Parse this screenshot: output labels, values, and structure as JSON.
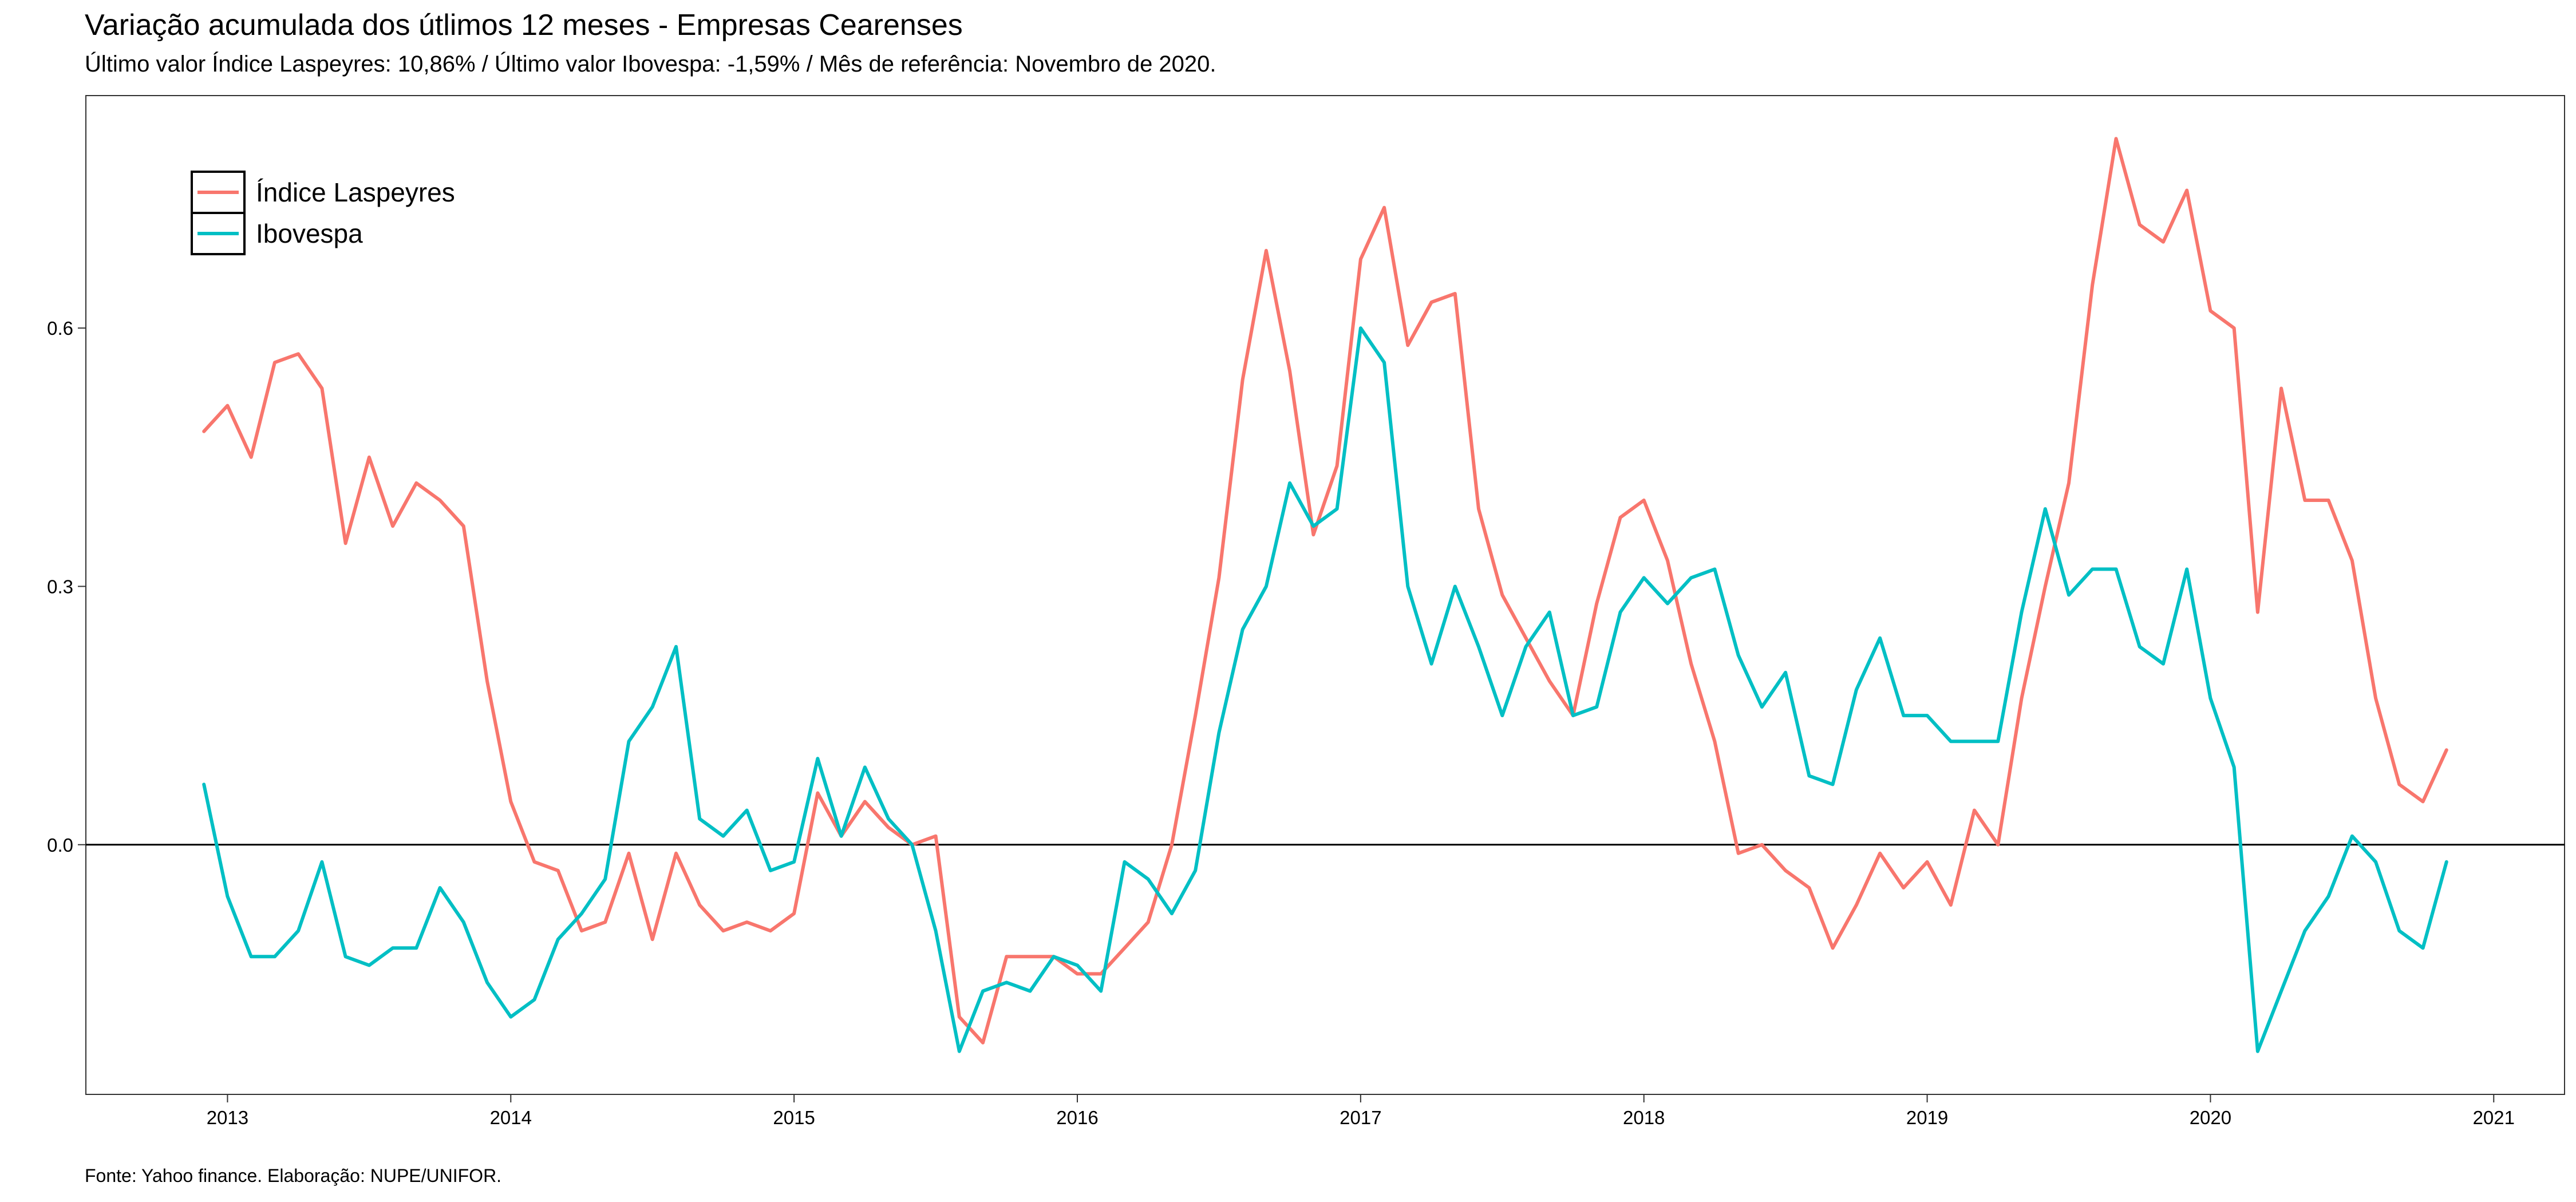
{
  "chart_data": {
    "type": "line",
    "title": "Variação acumulada dos útlimos 12 meses - Empresas Cearenses",
    "subtitle": "Último valor Índice Laspeyres: 10,86% / Último valor Ibovespa: -1,59% / Mês de referência: Novembro de 2020.",
    "caption": "Fonte: Yahoo finance. Elaboração: NUPE/UNIFOR.",
    "xlabel": "",
    "ylabel": "",
    "x_start": "2012-12",
    "x_end": "2020-11",
    "xlim": [
      "2012-07",
      "2021-04"
    ],
    "ylim": [
      -0.29,
      0.87
    ],
    "x_ticks": [
      "2013",
      "2014",
      "2015",
      "2016",
      "2017",
      "2018",
      "2019",
      "2020",
      "2021"
    ],
    "y_ticks": [
      "0.0",
      "0.3",
      "0.6"
    ],
    "y_tick_values": [
      0.0,
      0.3,
      0.6
    ],
    "reference_line_y": 0.0,
    "grid": false,
    "legend_position": "top-left",
    "series": [
      {
        "name": "Índice Laspeyres",
        "color": "#F8766D",
        "values": [
          0.48,
          0.51,
          0.45,
          0.56,
          0.57,
          0.53,
          0.35,
          0.45,
          0.37,
          0.42,
          0.4,
          0.37,
          0.19,
          0.05,
          -0.02,
          -0.03,
          -0.1,
          -0.09,
          -0.01,
          -0.11,
          -0.01,
          -0.07,
          -0.1,
          -0.09,
          -0.1,
          -0.08,
          0.06,
          0.01,
          0.05,
          0.02,
          0.0,
          0.01,
          -0.2,
          -0.23,
          -0.13,
          -0.13,
          -0.13,
          -0.15,
          -0.15,
          -0.12,
          -0.09,
          0.0,
          0.15,
          0.31,
          0.54,
          0.69,
          0.55,
          0.36,
          0.44,
          0.68,
          0.74,
          0.58,
          0.63,
          0.64,
          0.39,
          0.29,
          0.24,
          0.19,
          0.15,
          0.28,
          0.38,
          0.4,
          0.33,
          0.21,
          0.12,
          -0.01,
          0.0,
          -0.03,
          -0.05,
          -0.12,
          -0.07,
          -0.01,
          -0.05,
          -0.02,
          -0.07,
          0.04,
          0.0,
          0.17,
          0.3,
          0.42,
          0.65,
          0.82,
          0.72,
          0.7,
          0.76,
          0.62,
          0.6,
          0.27,
          0.53,
          0.4,
          0.4,
          0.33,
          0.17,
          0.07,
          0.05,
          0.11
        ]
      },
      {
        "name": "Ibovespa",
        "color": "#00BFC4",
        "values": [
          0.07,
          -0.06,
          -0.13,
          -0.13,
          -0.1,
          -0.02,
          -0.13,
          -0.14,
          -0.12,
          -0.12,
          -0.05,
          -0.09,
          -0.16,
          -0.2,
          -0.18,
          -0.11,
          -0.08,
          -0.04,
          0.12,
          0.16,
          0.23,
          0.03,
          0.01,
          0.04,
          -0.03,
          -0.02,
          0.1,
          0.01,
          0.09,
          0.03,
          0.0,
          -0.1,
          -0.24,
          -0.17,
          -0.16,
          -0.17,
          -0.13,
          -0.14,
          -0.17,
          -0.02,
          -0.04,
          -0.08,
          -0.03,
          0.13,
          0.25,
          0.3,
          0.42,
          0.37,
          0.39,
          0.6,
          0.56,
          0.3,
          0.21,
          0.3,
          0.23,
          0.15,
          0.23,
          0.27,
          0.15,
          0.16,
          0.27,
          0.31,
          0.28,
          0.31,
          0.32,
          0.22,
          0.16,
          0.2,
          0.08,
          0.07,
          0.18,
          0.24,
          0.15,
          0.15,
          0.12,
          0.12,
          0.12,
          0.27,
          0.39,
          0.29,
          0.32,
          0.32,
          0.23,
          0.21,
          0.32,
          0.17,
          0.09,
          -0.24,
          -0.17,
          -0.1,
          -0.06,
          0.01,
          -0.02,
          -0.1,
          -0.12,
          -0.02
        ]
      }
    ]
  }
}
